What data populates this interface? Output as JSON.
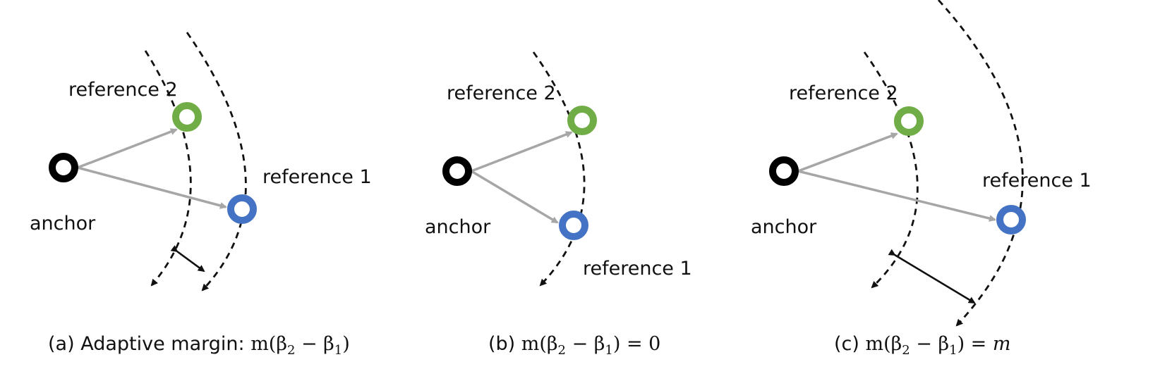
{
  "colors": {
    "anchor": "#000000",
    "reference_2": "#70ad47",
    "reference_1": "#4472c4",
    "arrow": "#a6a6a6",
    "arc": "#111111"
  },
  "panels": [
    {
      "id": "a",
      "anchor_label": "anchor",
      "ref2_label": "reference 2",
      "ref1_label": "reference 1",
      "caption_prefix": "(a) Adaptive margin: ",
      "caption_math": "m(β",
      "caption_sub1": "2",
      "caption_mid": " − β",
      "caption_sub2": "1",
      "caption_end": ")",
      "caption_rhs": ""
    },
    {
      "id": "b",
      "anchor_label": "anchor",
      "ref2_label": "reference 2",
      "ref1_label": "reference 1",
      "caption_prefix": "(b) ",
      "caption_math": "m(β",
      "caption_sub1": "2",
      "caption_mid": " − β",
      "caption_sub2": "1",
      "caption_end": ") = 0",
      "caption_rhs": ""
    },
    {
      "id": "c",
      "anchor_label": "anchor",
      "ref2_label": "reference 2",
      "ref1_label": "reference 1",
      "caption_prefix": "(c) ",
      "caption_math": "m(β",
      "caption_sub1": "2",
      "caption_mid": " − β",
      "caption_sub2": "1",
      "caption_end": ") = ",
      "caption_rhs": "m"
    }
  ]
}
